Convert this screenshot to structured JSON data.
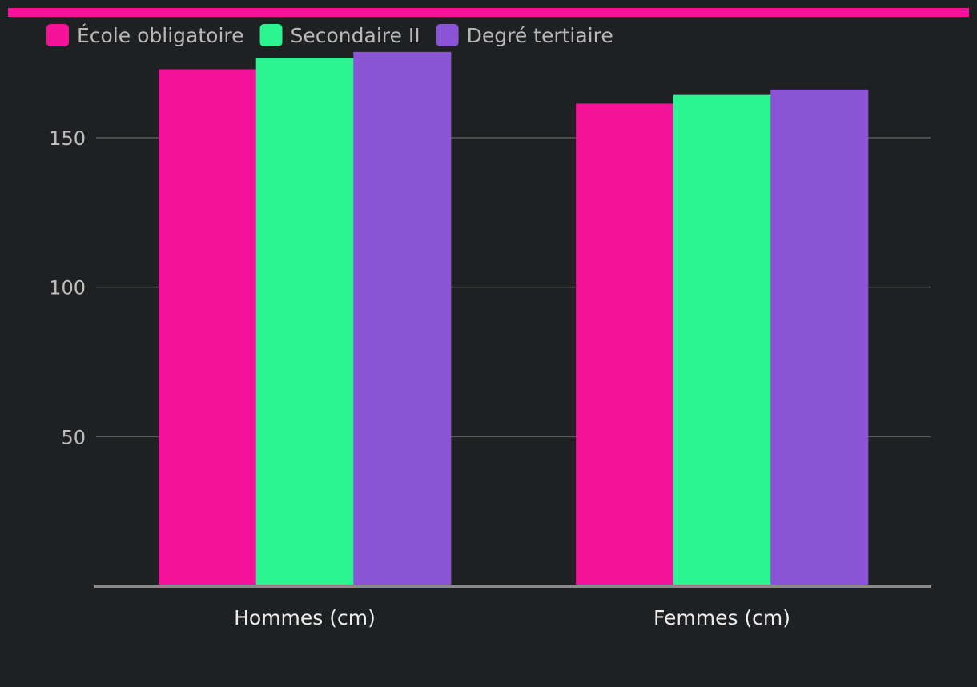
{
  "colors": {
    "background": "#1f2022",
    "accent_bar": "#f5119a",
    "grid": "#5a5a5a",
    "axis": "#8a8a8a"
  },
  "chart_data": {
    "type": "bar",
    "title": "",
    "xlabel": "",
    "ylabel": "",
    "categories": [
      "Hommes (cm)",
      "Femmes (cm)"
    ],
    "series": [
      {
        "name": "École obligatoire",
        "color": "#f5119a",
        "values": [
          172.9,
          161.4
        ]
      },
      {
        "name": "Secondaire II",
        "color": "#2bf590",
        "values": [
          176.7,
          164.3
        ]
      },
      {
        "name": "Degré tertiaire",
        "color": "#8b53d6",
        "values": [
          178.7,
          166.1
        ]
      }
    ],
    "ylim": [
      0,
      180
    ],
    "yticks": [
      50,
      100,
      150
    ],
    "grid": true,
    "legend": "top-left"
  }
}
